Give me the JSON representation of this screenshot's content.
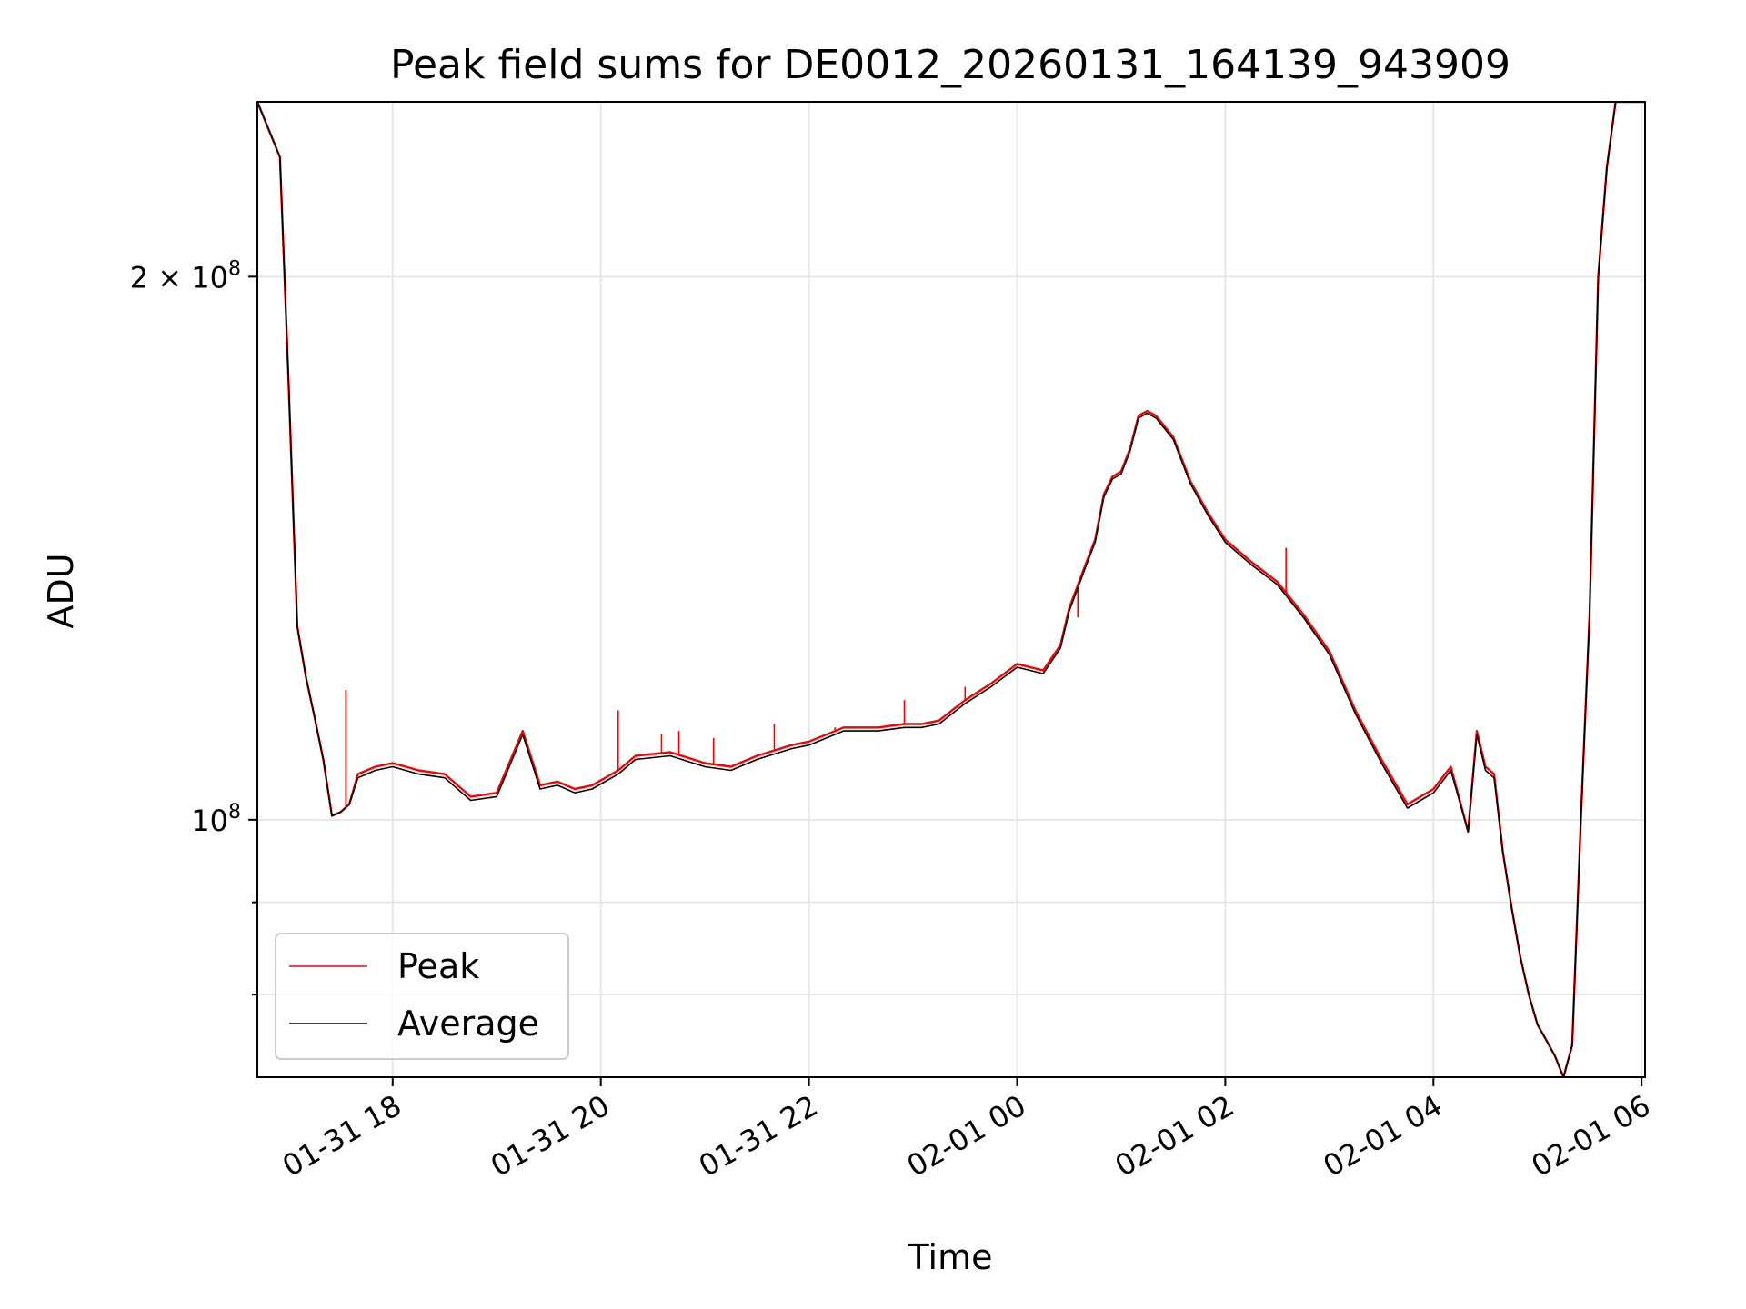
{
  "chart_data": {
    "type": "line",
    "title": "Peak field sums for DE0012_20260131_164139_943909",
    "xlabel": "Time",
    "ylabel": "ADU",
    "y_scale": "log",
    "ylim": [
      72000000,
      250000000
    ],
    "xlim": [
      "2026-01-31 16:42",
      "2026-02-01 06:02"
    ],
    "grid": true,
    "legend_position": "lower-left",
    "x_ticks": [
      {
        "value": "2026-01-31 18:00",
        "label": "01-31 18"
      },
      {
        "value": "2026-01-31 20:00",
        "label": "01-31 20"
      },
      {
        "value": "2026-01-31 22:00",
        "label": "01-31 22"
      },
      {
        "value": "2026-02-01 00:00",
        "label": "02-01 00"
      },
      {
        "value": "2026-02-01 02:00",
        "label": "02-01 02"
      },
      {
        "value": "2026-02-01 04:00",
        "label": "02-01 04"
      },
      {
        "value": "2026-02-01 06:00",
        "label": "02-01 06"
      }
    ],
    "y_major_ticks": [
      {
        "value": 100000000,
        "base": "10",
        "exp": "8",
        "mult": ""
      },
      {
        "value": 200000000,
        "base": "10",
        "exp": "8",
        "mult": "2 × "
      }
    ],
    "y_minor_ticks": [
      80000000,
      90000000
    ],
    "series": [
      {
        "name": "Peak",
        "color": "#ff0000",
        "x": [
          "2026-01-31 16:42",
          "2026-01-31 16:55",
          "2026-01-31 17:00",
          "2026-01-31 17:05",
          "2026-01-31 17:10",
          "2026-01-31 17:15",
          "2026-01-31 17:20",
          "2026-01-31 17:25",
          "2026-01-31 17:30",
          "2026-01-31 17:35",
          "2026-01-31 17:40",
          "2026-01-31 17:45",
          "2026-01-31 17:50",
          "2026-01-31 18:00",
          "2026-01-31 18:15",
          "2026-01-31 18:30",
          "2026-01-31 18:45",
          "2026-01-31 19:00",
          "2026-01-31 19:15",
          "2026-01-31 19:25",
          "2026-01-31 19:35",
          "2026-01-31 19:45",
          "2026-01-31 19:55",
          "2026-01-31 20:10",
          "2026-01-31 20:20",
          "2026-01-31 20:40",
          "2026-01-31 21:00",
          "2026-01-31 21:15",
          "2026-01-31 21:30",
          "2026-01-31 21:50",
          "2026-01-31 22:00",
          "2026-01-31 22:20",
          "2026-01-31 22:40",
          "2026-01-31 22:55",
          "2026-01-31 23:05",
          "2026-01-31 23:15",
          "2026-01-31 23:30",
          "2026-01-31 23:45",
          "2026-02-01 00:00",
          "2026-02-01 00:15",
          "2026-02-01 00:25",
          "2026-02-01 00:30",
          "2026-02-01 00:40",
          "2026-02-01 00:45",
          "2026-02-01 00:50",
          "2026-02-01 00:55",
          "2026-02-01 01:00",
          "2026-02-01 01:05",
          "2026-02-01 01:10",
          "2026-02-01 01:15",
          "2026-02-01 01:20",
          "2026-02-01 01:30",
          "2026-02-01 01:40",
          "2026-02-01 01:50",
          "2026-02-01 02:00",
          "2026-02-01 02:15",
          "2026-02-01 02:30",
          "2026-02-01 02:45",
          "2026-02-01 03:00",
          "2026-02-01 03:15",
          "2026-02-01 03:30",
          "2026-02-01 03:45",
          "2026-02-01 04:00",
          "2026-02-01 04:10",
          "2026-02-01 04:20",
          "2026-02-01 04:25",
          "2026-02-01 04:30",
          "2026-02-01 04:35",
          "2026-02-01 04:40",
          "2026-02-01 04:45",
          "2026-02-01 04:50",
          "2026-02-01 04:55",
          "2026-02-01 05:00",
          "2026-02-01 05:05",
          "2026-02-01 05:10",
          "2026-02-01 05:15",
          "2026-02-01 05:20",
          "2026-02-01 05:25",
          "2026-02-01 05:30",
          "2026-02-01 05:35",
          "2026-02-01 05:40",
          "2026-02-01 05:45",
          "2026-02-01 05:50",
          "2026-02-01 05:55",
          "2026-02-01 06:02"
        ],
        "y": [
          250000000,
          233000000,
          175000000,
          128000000,
          120000000,
          114000000,
          108000000,
          100500000,
          101000000,
          102000000,
          106000000,
          106500000,
          107000000,
          107500000,
          106500000,
          106000000,
          103000000,
          103500000,
          112000000,
          104500000,
          105000000,
          104000000,
          104500000,
          106500000,
          108500000,
          109000000,
          107500000,
          107000000,
          108500000,
          110000000,
          110500000,
          112500000,
          112500000,
          113000000,
          113000000,
          113500000,
          116500000,
          119000000,
          122000000,
          121000000,
          125000000,
          131000000,
          139000000,
          143000000,
          151500000,
          155000000,
          156000000,
          160500000,
          167500000,
          168500000,
          167500000,
          163000000,
          154000000,
          148000000,
          143000000,
          139000000,
          135500000,
          130000000,
          124000000,
          115000000,
          108000000,
          102000000,
          104000000,
          107000000,
          98500000,
          112000000,
          107000000,
          106000000,
          96000000,
          89500000,
          84000000,
          80000000,
          77000000,
          75500000,
          74000000,
          72000000,
          75000000,
          100000000,
          130000000,
          200000000,
          230000000,
          250000000,
          250000000,
          250000000,
          250000000
        ],
        "spikes": [
          {
            "x": "2026-01-31 17:33",
            "y": 118000000
          },
          {
            "x": "2026-01-31 20:10",
            "y": 115000000
          },
          {
            "x": "2026-01-31 20:35",
            "y": 111500000
          },
          {
            "x": "2026-01-31 20:45",
            "y": 112000000
          },
          {
            "x": "2026-01-31 21:05",
            "y": 111000000
          },
          {
            "x": "2026-01-31 21:40",
            "y": 113000000
          },
          {
            "x": "2026-01-31 22:15",
            "y": 112500000
          },
          {
            "x": "2026-01-31 22:55",
            "y": 116500000
          },
          {
            "x": "2026-01-31 23:30",
            "y": 118500000
          },
          {
            "x": "2026-02-01 00:35",
            "y": 129500000
          },
          {
            "x": "2026-02-01 02:35",
            "y": 141500000
          }
        ]
      },
      {
        "name": "Average",
        "color": "#000000",
        "x": [
          "2026-01-31 16:42",
          "2026-01-31 16:55",
          "2026-01-31 17:00",
          "2026-01-31 17:05",
          "2026-01-31 17:10",
          "2026-01-31 17:15",
          "2026-01-31 17:20",
          "2026-01-31 17:25",
          "2026-01-31 17:30",
          "2026-01-31 17:35",
          "2026-01-31 17:40",
          "2026-01-31 17:45",
          "2026-01-31 17:50",
          "2026-01-31 18:00",
          "2026-01-31 18:15",
          "2026-01-31 18:30",
          "2026-01-31 18:45",
          "2026-01-31 19:00",
          "2026-01-31 19:15",
          "2026-01-31 19:25",
          "2026-01-31 19:35",
          "2026-01-31 19:45",
          "2026-01-31 19:55",
          "2026-01-31 20:10",
          "2026-01-31 20:20",
          "2026-01-31 20:40",
          "2026-01-31 21:00",
          "2026-01-31 21:15",
          "2026-01-31 21:30",
          "2026-01-31 21:50",
          "2026-01-31 22:00",
          "2026-01-31 22:20",
          "2026-01-31 22:40",
          "2026-01-31 22:55",
          "2026-01-31 23:05",
          "2026-01-31 23:15",
          "2026-01-31 23:30",
          "2026-01-31 23:45",
          "2026-02-01 00:00",
          "2026-02-01 00:15",
          "2026-02-01 00:25",
          "2026-02-01 00:30",
          "2026-02-01 00:40",
          "2026-02-01 00:45",
          "2026-02-01 00:50",
          "2026-02-01 00:55",
          "2026-02-01 01:00",
          "2026-02-01 01:05",
          "2026-02-01 01:10",
          "2026-02-01 01:15",
          "2026-02-01 01:20",
          "2026-02-01 01:30",
          "2026-02-01 01:40",
          "2026-02-01 01:50",
          "2026-02-01 02:00",
          "2026-02-01 02:15",
          "2026-02-01 02:30",
          "2026-02-01 02:45",
          "2026-02-01 03:00",
          "2026-02-01 03:15",
          "2026-02-01 03:30",
          "2026-02-01 03:45",
          "2026-02-01 04:00",
          "2026-02-01 04:10",
          "2026-02-01 04:20",
          "2026-02-01 04:25",
          "2026-02-01 04:30",
          "2026-02-01 04:35",
          "2026-02-01 04:40",
          "2026-02-01 04:45",
          "2026-02-01 04:50",
          "2026-02-01 04:55",
          "2026-02-01 05:00",
          "2026-02-01 05:05",
          "2026-02-01 05:10",
          "2026-02-01 05:15",
          "2026-02-01 05:20",
          "2026-02-01 05:25",
          "2026-02-01 05:30",
          "2026-02-01 05:35",
          "2026-02-01 05:40",
          "2026-02-01 05:45",
          "2026-02-01 05:50",
          "2026-02-01 05:55",
          "2026-02-01 06:02"
        ],
        "y": [
          250000000,
          233000000,
          175000000,
          128000000,
          120000000,
          114000000,
          108000000,
          100500000,
          101000000,
          102000000,
          105500000,
          106000000,
          106500000,
          107000000,
          106000000,
          105500000,
          102500000,
          103000000,
          111500000,
          104000000,
          104500000,
          103500000,
          104000000,
          106000000,
          108000000,
          108500000,
          107000000,
          106500000,
          108000000,
          109500000,
          110000000,
          112000000,
          112000000,
          112500000,
          112500000,
          113000000,
          116000000,
          118500000,
          121500000,
          120500000,
          124500000,
          130500000,
          138500000,
          142500000,
          151000000,
          154500000,
          155500000,
          160000000,
          167000000,
          168000000,
          167000000,
          162500000,
          153500000,
          147500000,
          142500000,
          138500000,
          135000000,
          129500000,
          123500000,
          114500000,
          107500000,
          101500000,
          103500000,
          106500000,
          98500000,
          111500000,
          106500000,
          105500000,
          96000000,
          89500000,
          84000000,
          80000000,
          77000000,
          75500000,
          74000000,
          72000000,
          75000000,
          100000000,
          130000000,
          200000000,
          230000000,
          250000000,
          250000000,
          250000000,
          250000000
        ]
      }
    ]
  }
}
